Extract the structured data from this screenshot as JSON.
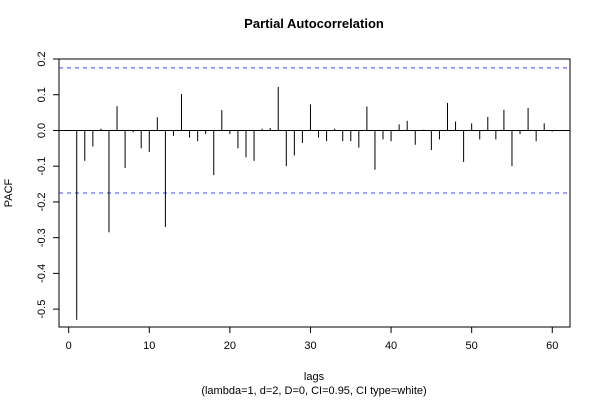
{
  "chart_data": {
    "type": "bar",
    "title": "Partial Autocorrelation",
    "xlabel": "lags",
    "xlabel_sub": "(lambda=1, d=2, D=0, CI=0.95, CI type=white)",
    "ylabel": "PACF",
    "xlim": [
      -1.2,
      62.2
    ],
    "ylim": [
      -0.55,
      0.2
    ],
    "x_ticks": [
      0,
      10,
      20,
      30,
      40,
      50,
      60
    ],
    "y_ticks": [
      -0.5,
      -0.4,
      -0.3,
      -0.2,
      -0.1,
      0.0,
      0.1,
      0.2
    ],
    "y_tick_labels": [
      "-0.5",
      "-0.4",
      "-0.3",
      "-0.2",
      "-0.1",
      "0.0",
      "0.1",
      "0.2"
    ],
    "ci": 0.175,
    "ci_color": "#4040ff",
    "bar_color": "#000000",
    "grid": false,
    "lags": [
      1,
      2,
      3,
      4,
      5,
      6,
      7,
      8,
      9,
      10,
      11,
      12,
      13,
      14,
      15,
      16,
      17,
      18,
      19,
      20,
      21,
      22,
      23,
      24,
      25,
      26,
      27,
      28,
      29,
      30,
      31,
      32,
      33,
      34,
      35,
      36,
      37,
      38,
      39,
      40,
      41,
      42,
      43,
      44,
      45,
      46,
      47,
      48,
      49,
      50,
      51,
      52,
      53,
      54,
      55,
      56,
      57,
      58,
      59,
      60
    ],
    "values": [
      -0.53,
      -0.085,
      -0.045,
      0.005,
      -0.285,
      0.068,
      -0.105,
      -0.005,
      -0.05,
      -0.06,
      0.037,
      -0.27,
      -0.015,
      0.102,
      -0.02,
      -0.03,
      -0.01,
      -0.125,
      0.057,
      -0.01,
      -0.05,
      -0.075,
      -0.085,
      0.005,
      0.007,
      0.122,
      -0.1,
      -0.07,
      -0.035,
      0.073,
      -0.02,
      -0.03,
      0.005,
      -0.03,
      -0.03,
      -0.048,
      0.067,
      -0.11,
      -0.025,
      -0.03,
      0.017,
      0.027,
      -0.04,
      0.002,
      -0.055,
      -0.025,
      0.077,
      0.025,
      -0.088,
      0.02,
      -0.025,
      0.038,
      -0.025,
      0.058,
      -0.1,
      -0.01,
      0.063,
      -0.03,
      0.02,
      -0.003
    ]
  }
}
